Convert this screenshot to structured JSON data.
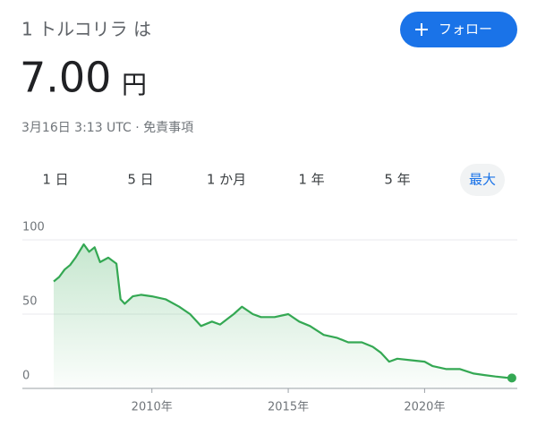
{
  "header": {
    "title": "1 トルコリラ は",
    "follow_button": "フォロー"
  },
  "price": {
    "value": "7.00",
    "unit": "円"
  },
  "timestamp": "3月16日 3:13 UTC · 免責事項",
  "tabs": [
    "1 日",
    "5 日",
    "1 か月",
    "1 年",
    "5 年",
    "最大"
  ],
  "chart_data": {
    "type": "line",
    "x": [
      2006.4,
      2006.6,
      2006.8,
      2007.0,
      2007.2,
      2007.5,
      2007.7,
      2007.9,
      2008.1,
      2008.4,
      2008.7,
      2008.85,
      2009.0,
      2009.3,
      2009.6,
      2010.0,
      2010.5,
      2011.0,
      2011.4,
      2011.8,
      2012.2,
      2012.5,
      2013.0,
      2013.3,
      2013.7,
      2014.0,
      2014.5,
      2015.0,
      2015.4,
      2015.8,
      2016.3,
      2016.8,
      2017.2,
      2017.7,
      2018.1,
      2018.4,
      2018.7,
      2019.0,
      2019.5,
      2020.0,
      2020.3,
      2020.8,
      2021.3,
      2021.8,
      2022.2,
      2022.6,
      2023.0,
      2023.2
    ],
    "values": [
      72,
      75,
      80,
      83,
      88,
      97,
      92,
      95,
      85,
      88,
      84,
      60,
      57,
      62,
      63,
      62,
      60,
      55,
      50,
      42,
      45,
      43,
      50,
      55,
      50,
      48,
      48,
      50,
      45,
      42,
      36,
      34,
      31,
      31,
      28,
      24,
      18,
      20,
      19,
      18,
      15,
      13,
      13,
      10,
      9,
      8,
      7.2,
      7.0
    ],
    "color": "#34a853",
    "xlim": [
      2005.25,
      2023.4
    ],
    "xticks": [
      {
        "value": 2010,
        "label": "2010年"
      },
      {
        "value": 2015,
        "label": "2015年"
      },
      {
        "value": 2020,
        "label": "2020年"
      }
    ],
    "ylim": [
      0,
      100
    ],
    "yticks": [
      0,
      50,
      100
    ],
    "grid": true
  }
}
